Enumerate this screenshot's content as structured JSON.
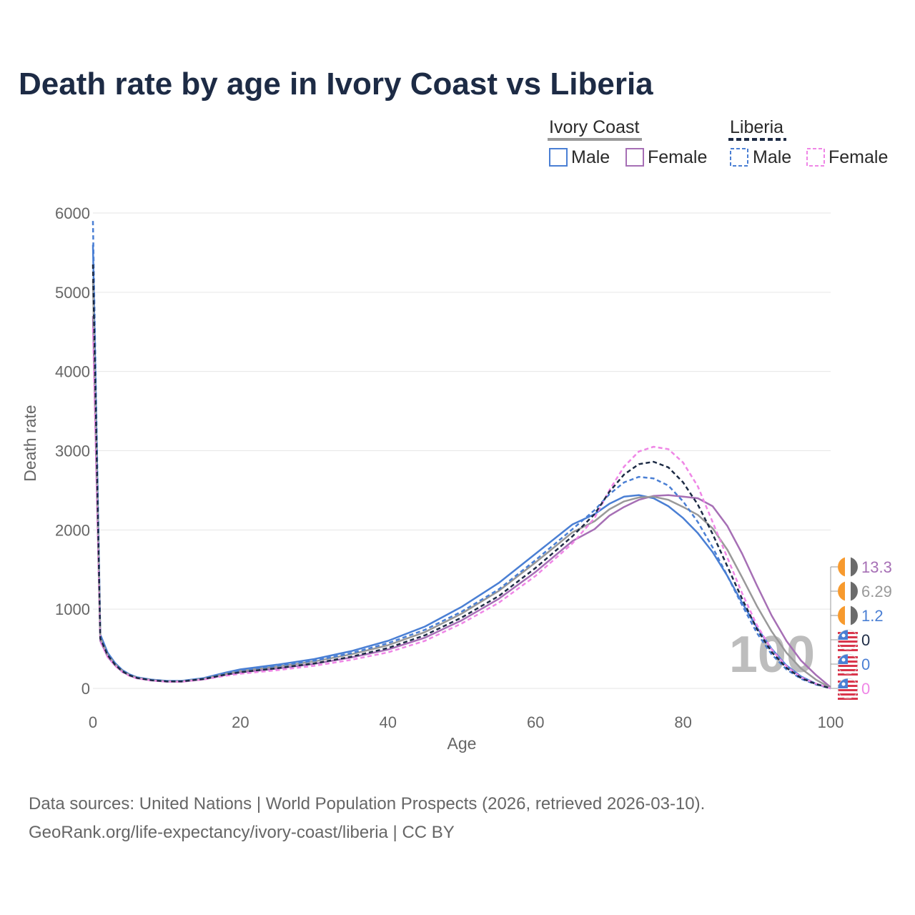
{
  "colors": {
    "ic_male": "#4a7fd4",
    "ic_female": "#a66fb5",
    "ic_both": "#999999",
    "lr_male": "#4a7fd4",
    "lr_female": "#ef86e6",
    "lr_both": "#1d2b45",
    "grid": "#e6e6e6",
    "flag_orange": "#f79a2e",
    "flag_grey": "#6b6b6b",
    "flag_blue": "#4a7fd4",
    "flag_red": "#d9364c"
  },
  "legend": {
    "group1": "Ivory Coast",
    "group2": "Liberia",
    "male": "Male",
    "female": "Female"
  },
  "end_labels": {
    "ic_female": "13.3",
    "ic_both": "6.29",
    "ic_male": "1.2",
    "lr_both": "0",
    "lr_male": "0",
    "lr_female": "0"
  },
  "watermark": "100",
  "footer": {
    "line1": "Data sources: United Nations | World Population Prospects (2026, retrieved 2026-03-10).",
    "line2": "GeoRank.org/life-expectancy/ivory-coast/liberia | CC BY"
  },
  "chart_data": {
    "type": "line",
    "title": "Death rate by age in Ivory Coast vs Liberia",
    "xlabel": "Age",
    "ylabel": "Death rate",
    "xlim": [
      0,
      100
    ],
    "ylim": [
      0,
      6000
    ],
    "xticks": [
      0,
      20,
      40,
      60,
      80,
      100
    ],
    "yticks": [
      0,
      1000,
      2000,
      3000,
      4000,
      5000,
      6000
    ],
    "x": [
      0,
      1,
      2,
      3,
      4,
      5,
      6,
      8,
      10,
      12,
      15,
      18,
      20,
      25,
      30,
      35,
      40,
      45,
      50,
      55,
      60,
      65,
      68,
      70,
      72,
      74,
      76,
      78,
      80,
      82,
      84,
      86,
      88,
      90,
      92,
      94,
      96,
      98,
      100
    ],
    "series": [
      {
        "name": "Ivory Coast Male",
        "key": "ic_male",
        "dashed": false,
        "values": [
          5600,
          680,
          450,
          320,
          230,
          175,
          140,
          110,
          95,
          95,
          130,
          200,
          240,
          300,
          370,
          470,
          600,
          780,
          1030,
          1330,
          1700,
          2070,
          2200,
          2330,
          2420,
          2440,
          2400,
          2300,
          2150,
          1960,
          1720,
          1420,
          1080,
          770,
          500,
          290,
          150,
          60,
          1.2
        ]
      },
      {
        "name": "Ivory Coast Female",
        "key": "ic_female",
        "dashed": false,
        "values": [
          4700,
          600,
          400,
          290,
          210,
          160,
          128,
          100,
          85,
          85,
          115,
          170,
          200,
          250,
          310,
          390,
          490,
          640,
          860,
          1130,
          1470,
          1860,
          2010,
          2180,
          2290,
          2380,
          2430,
          2440,
          2420,
          2400,
          2300,
          2050,
          1700,
          1300,
          920,
          600,
          350,
          170,
          13.3
        ]
      },
      {
        "name": "Ivory Coast Both",
        "key": "ic_both",
        "dashed": false,
        "values": [
          5150,
          640,
          425,
          305,
          220,
          168,
          134,
          105,
          90,
          90,
          122,
          185,
          220,
          275,
          340,
          430,
          545,
          710,
          945,
          1230,
          1590,
          1970,
          2110,
          2260,
          2360,
          2410,
          2420,
          2380,
          2290,
          2190,
          2020,
          1750,
          1400,
          1040,
          720,
          450,
          250,
          110,
          6.29
        ]
      },
      {
        "name": "Liberia Male",
        "key": "lr_male",
        "dashed": true,
        "values": [
          5900,
          660,
          440,
          315,
          225,
          170,
          136,
          106,
          92,
          92,
          125,
          190,
          230,
          285,
          350,
          445,
          570,
          740,
          970,
          1250,
          1620,
          2010,
          2250,
          2450,
          2600,
          2670,
          2650,
          2560,
          2360,
          2100,
          1780,
          1420,
          1050,
          700,
          430,
          240,
          120,
          50,
          0
        ]
      },
      {
        "name": "Liberia Female",
        "key": "lr_female",
        "dashed": true,
        "values": [
          4550,
          590,
          395,
          285,
          205,
          156,
          125,
          98,
          84,
          84,
          112,
          160,
          185,
          230,
          285,
          360,
          455,
          600,
          820,
          1080,
          1420,
          1830,
          2150,
          2500,
          2800,
          2990,
          3050,
          3020,
          2850,
          2550,
          2100,
          1650,
          1200,
          800,
          490,
          280,
          140,
          60,
          0
        ]
      },
      {
        "name": "Liberia Both",
        "key": "lr_both",
        "dashed": true,
        "values": [
          5350,
          630,
          420,
          300,
          215,
          164,
          131,
          102,
          88,
          88,
          118,
          175,
          205,
          255,
          315,
          400,
          510,
          670,
          895,
          1165,
          1520,
          1920,
          2200,
          2480,
          2700,
          2830,
          2860,
          2790,
          2600,
          2320,
          1950,
          1540,
          1130,
          750,
          460,
          260,
          130,
          55,
          0
        ]
      }
    ]
  }
}
